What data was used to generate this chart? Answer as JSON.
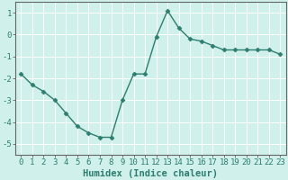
{
  "x": [
    0,
    1,
    2,
    3,
    4,
    5,
    6,
    7,
    8,
    9,
    10,
    11,
    12,
    13,
    14,
    15,
    16,
    17,
    18,
    19,
    20,
    21,
    22,
    23
  ],
  "y": [
    -1.8,
    -2.3,
    -2.6,
    -3.0,
    -3.6,
    -4.2,
    -4.5,
    -4.7,
    -4.7,
    -3.0,
    -1.8,
    -1.8,
    -0.1,
    1.1,
    0.3,
    -0.2,
    -0.3,
    -0.5,
    -0.7,
    -0.7,
    -0.7,
    -0.7,
    -0.7,
    -0.9
  ],
  "line_color": "#2e7d6e",
  "marker": "D",
  "markersize": 2.5,
  "linewidth": 1.0,
  "bg_color": "#cff0eb",
  "grid_color": "#ffffff",
  "xlabel": "Humidex (Indice chaleur)",
  "xlim_left": -0.5,
  "xlim_right": 23.5,
  "ylim_bottom": -5.5,
  "ylim_top": 1.5,
  "yticks": [
    -5,
    -4,
    -3,
    -2,
    -1,
    0,
    1
  ],
  "xlabel_fontsize": 7.5,
  "tick_fontsize": 6.5,
  "spine_color": "#666666"
}
